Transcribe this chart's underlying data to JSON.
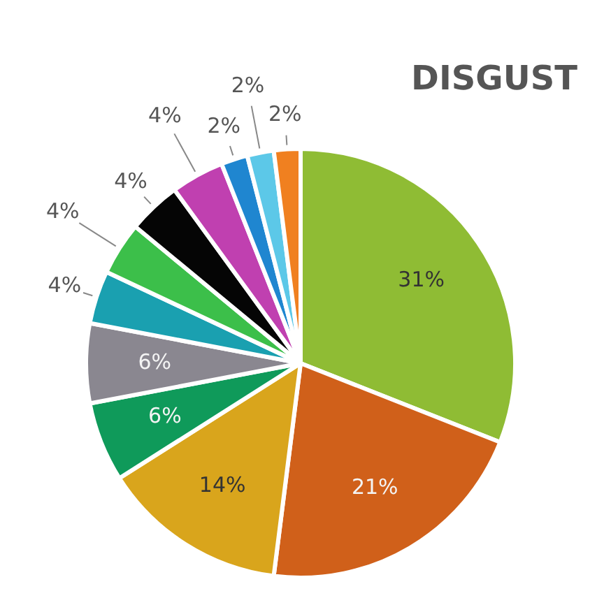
{
  "chart_data": {
    "type": "pie",
    "title": "DISGUST",
    "categories": [
      null,
      null,
      null,
      null,
      null,
      null,
      null,
      null,
      null,
      null,
      null,
      null
    ],
    "values": [
      31,
      21,
      14,
      6,
      6,
      4,
      4,
      4,
      4,
      2,
      2,
      2
    ],
    "colors": [
      "#8fbc34",
      "#d0601a",
      "#d9a51c",
      "#0f9a5a",
      "#8a8790",
      "#1aa0b0",
      "#3cbf4a",
      "#050505",
      "#c040b0",
      "#1f86d0",
      "#5cc8e8",
      "#f08020"
    ],
    "value_labels": [
      "31%",
      "21%",
      "14%",
      "6%",
      "6%",
      "4%",
      "4%",
      "4%",
      "4%",
      "2%",
      "2%",
      "2%"
    ],
    "legend": false
  }
}
